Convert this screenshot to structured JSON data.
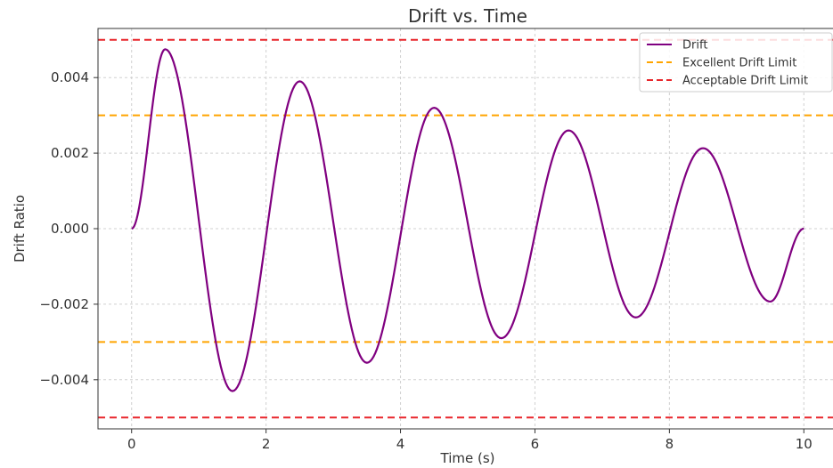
{
  "chart_data": {
    "type": "line",
    "title": "Drift vs. Time",
    "xlabel": "Time (s)",
    "ylabel": "Drift Ratio",
    "xlim": [
      -0.5,
      10.5
    ],
    "ylim": [
      -0.0053,
      0.0053
    ],
    "xticks": [
      {
        "value": 0,
        "label": "0"
      },
      {
        "value": 2,
        "label": "2"
      },
      {
        "value": 4,
        "label": "4"
      },
      {
        "value": 6,
        "label": "6"
      },
      {
        "value": 8,
        "label": "8"
      },
      {
        "value": 10,
        "label": "10"
      }
    ],
    "yticks": [
      {
        "value": -0.004,
        "label": "−0.004"
      },
      {
        "value": -0.002,
        "label": "−0.002"
      },
      {
        "value": 0.0,
        "label": "0.000"
      },
      {
        "value": 0.002,
        "label": "0.002"
      },
      {
        "value": 0.004,
        "label": "0.004"
      }
    ],
    "grid": true,
    "legend_position": "top-right",
    "series": [
      {
        "name": "Drift",
        "color": "#800080",
        "style": "solid",
        "x": [
          0.0,
          0.5,
          1.5,
          2.5,
          3.5,
          4.5,
          5.5,
          6.5,
          7.5,
          8.5,
          9.5,
          10.0
        ],
        "y": [
          0.0,
          0.00475,
          -0.0043,
          0.0039,
          -0.00355,
          0.0032,
          -0.0029,
          0.0026,
          -0.00235,
          0.00213,
          -0.00193,
          0.0
        ]
      }
    ],
    "reference_lines": [
      {
        "name": "Excellent Drift Limit",
        "color": "#FFA500",
        "style": "dashed",
        "values": [
          0.003,
          -0.003
        ]
      },
      {
        "name": "Acceptable Drift Limit",
        "color": "#E8262B",
        "style": "dashed",
        "values": [
          0.005,
          -0.005
        ]
      }
    ]
  }
}
